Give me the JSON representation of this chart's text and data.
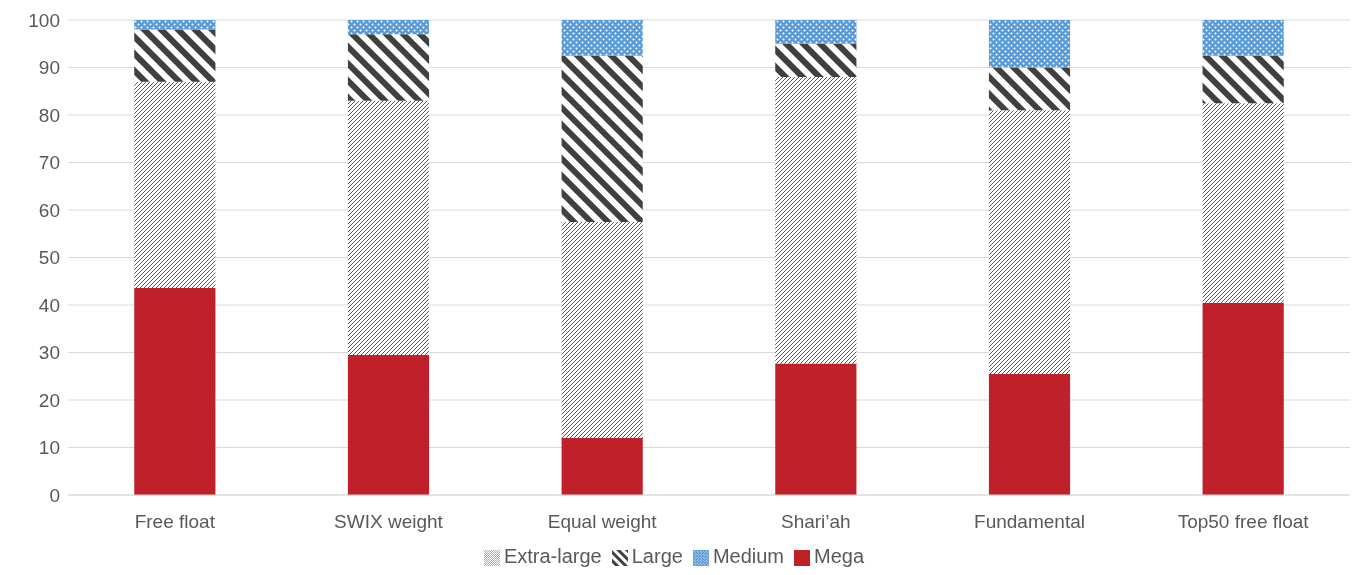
{
  "chart_data": {
    "type": "bar",
    "stacked": true,
    "categories": [
      "Free float",
      "SWIX weight",
      "Equal weight",
      "Shari’ah",
      "Fundamental",
      "Top50 free float"
    ],
    "series": [
      {
        "name": "Mega",
        "color": "#c0202a",
        "values": [
          43.6,
          29.5,
          12,
          27.7,
          25.5,
          40.5
        ]
      },
      {
        "name": "Extra-large",
        "color": "#595959",
        "values": [
          43.4,
          53.5,
          45.5,
          60.3,
          55.5,
          42
        ]
      },
      {
        "name": "Large",
        "color": "#404040",
        "values": [
          11,
          14,
          35,
          7,
          9,
          10
        ]
      },
      {
        "name": "Medium",
        "color": "#5b9bd5",
        "values": [
          2,
          3,
          7.5,
          5,
          10,
          7.5
        ]
      }
    ],
    "ylim": [
      0,
      100
    ],
    "yticks": [
      0,
      10,
      20,
      30,
      40,
      50,
      60,
      70,
      80,
      90,
      100
    ],
    "grid": "y",
    "legend": "bottom"
  }
}
